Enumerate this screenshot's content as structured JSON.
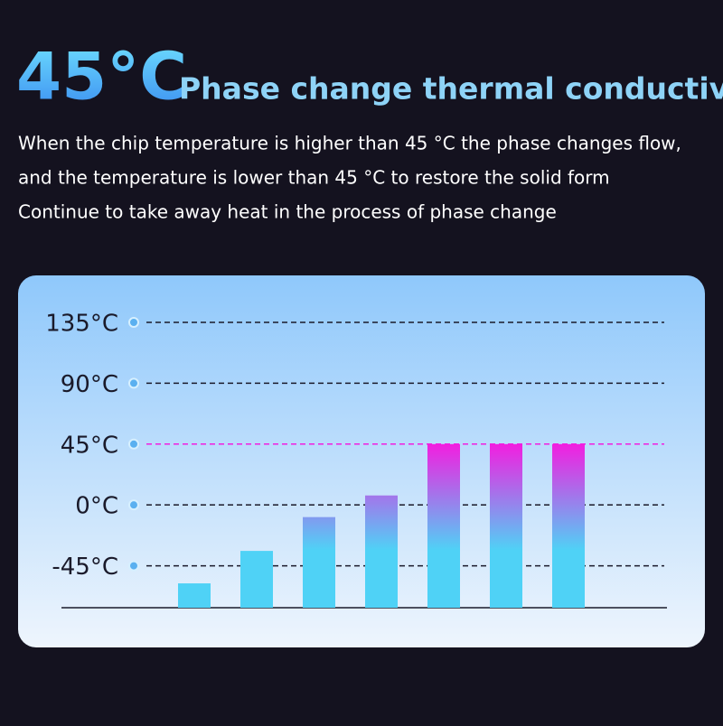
{
  "header": {
    "big": "45°C",
    "title": "Phase change thermal conductivity",
    "lines": [
      "When the chip temperature is higher than 45 °C the phase changes flow,",
      "and the temperature is lower than 45 °C to restore the solid form",
      "Continue to take away heat in the process of phase change"
    ]
  },
  "chart_data": {
    "type": "bar",
    "categories": [
      null,
      null,
      null,
      null,
      null,
      null,
      null
    ],
    "values": [
      -58,
      -34,
      -9,
      7,
      45,
      45,
      45
    ],
    "colors": [
      "#4fd2f6",
      "#f21ee0"
    ],
    "ylim": [
      -76,
      135
    ],
    "yticks": [
      {
        "value": 135,
        "label": "135°C"
      },
      {
        "value": 90,
        "label": "90°C"
      },
      {
        "value": 45,
        "label": "45°C"
      },
      {
        "value": 0,
        "label": "0°C"
      },
      {
        "value": -45,
        "label": "-45°C"
      }
    ],
    "grid": true
  }
}
